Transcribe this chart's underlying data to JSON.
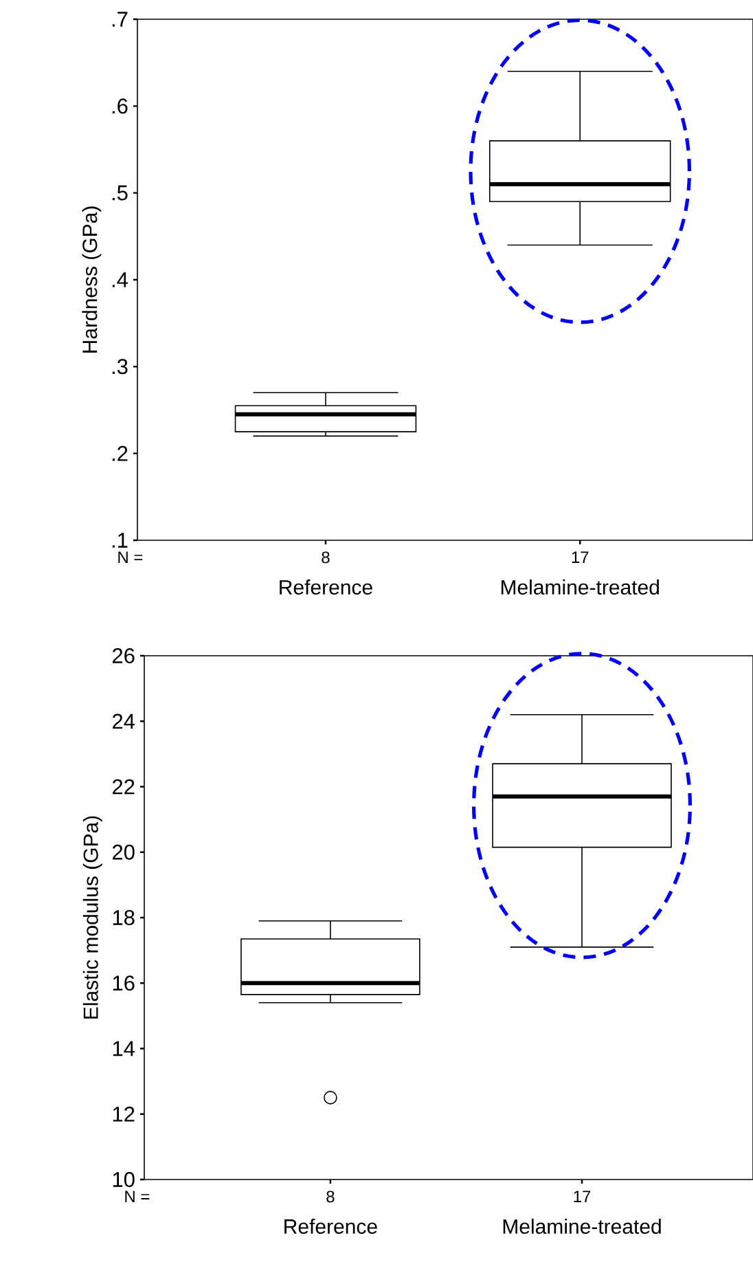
{
  "chart_data": [
    {
      "type": "box",
      "ylabel": "Hardness (GPa)",
      "categories": [
        "Reference",
        "Melamine-treated"
      ],
      "boxes": [
        {
          "low": 0.22,
          "q1": 0.225,
          "median": 0.245,
          "q3": 0.255,
          "high": 0.27
        },
        {
          "low": 0.44,
          "q1": 0.49,
          "median": 0.51,
          "q3": 0.56,
          "high": 0.64
        }
      ],
      "ylim": [
        0.1,
        0.7
      ],
      "yticks": [
        {
          "value": 0.1,
          "label": ".1"
        },
        {
          "value": 0.2,
          "label": ".2"
        },
        {
          "value": 0.3,
          "label": ".3"
        },
        {
          "value": 0.4,
          "label": ".4"
        },
        {
          "value": 0.5,
          "label": ".5"
        },
        {
          "value": 0.6,
          "label": ".6"
        },
        {
          "value": 0.7,
          "label": ".7"
        }
      ],
      "annotations": [
        "N =",
        "8",
        "17"
      ]
    },
    {
      "type": "box",
      "ylabel": "Elastic modulus (GPa)",
      "categories": [
        "Reference",
        "Melamine-treated"
      ],
      "boxes": [
        {
          "low": 15.4,
          "q1": 15.65,
          "median": 16.0,
          "q3": 17.35,
          "high": 17.9,
          "outliers": [
            12.5
          ]
        },
        {
          "low": 17.1,
          "q1": 20.15,
          "median": 21.7,
          "q3": 22.7,
          "high": 24.2
        }
      ],
      "ylim": [
        10,
        26
      ],
      "yticks": [
        10,
        12,
        14,
        16,
        18,
        20,
        22,
        24,
        26
      ],
      "annotations": [
        "N =",
        "8",
        "17"
      ]
    }
  ]
}
